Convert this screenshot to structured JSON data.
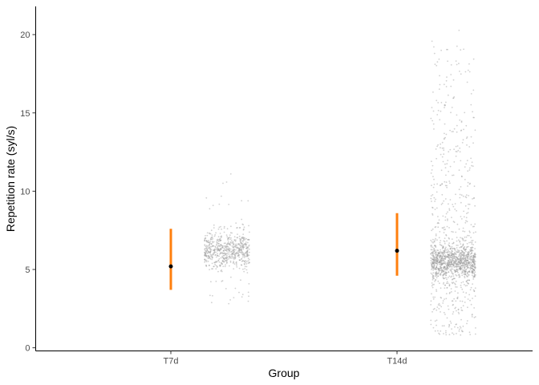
{
  "chart_data": {
    "type": "scatter",
    "title": "",
    "xlabel": "Group",
    "ylabel": "Repetition rate (syl/s)",
    "categories": [
      "T7d",
      "T14d"
    ],
    "ylim": [
      -0.2,
      21.8
    ],
    "yticks": [
      0,
      5,
      10,
      15,
      20
    ],
    "grid": false,
    "summary": [
      {
        "group": "T7d",
        "mean": 5.2,
        "lower": 3.7,
        "upper": 7.6
      },
      {
        "group": "T14d",
        "mean": 6.2,
        "lower": 4.6,
        "upper": 8.6
      }
    ],
    "raw_points": [
      {
        "group": "T7d",
        "n": 650,
        "center": 6.2,
        "spread": 0.55,
        "min": 2.8,
        "max": 12.5,
        "tail_fraction": 0.12
      },
      {
        "group": "T14d",
        "n": 1500,
        "center": 5.5,
        "spread": 0.55,
        "min": 0.8,
        "max": 20.7,
        "tail_fraction": 0.38
      }
    ],
    "colors": {
      "errorbar": "#ff7f0e",
      "mean_point": "#000000",
      "raw_points": "#999999",
      "axis": "#000000"
    }
  }
}
